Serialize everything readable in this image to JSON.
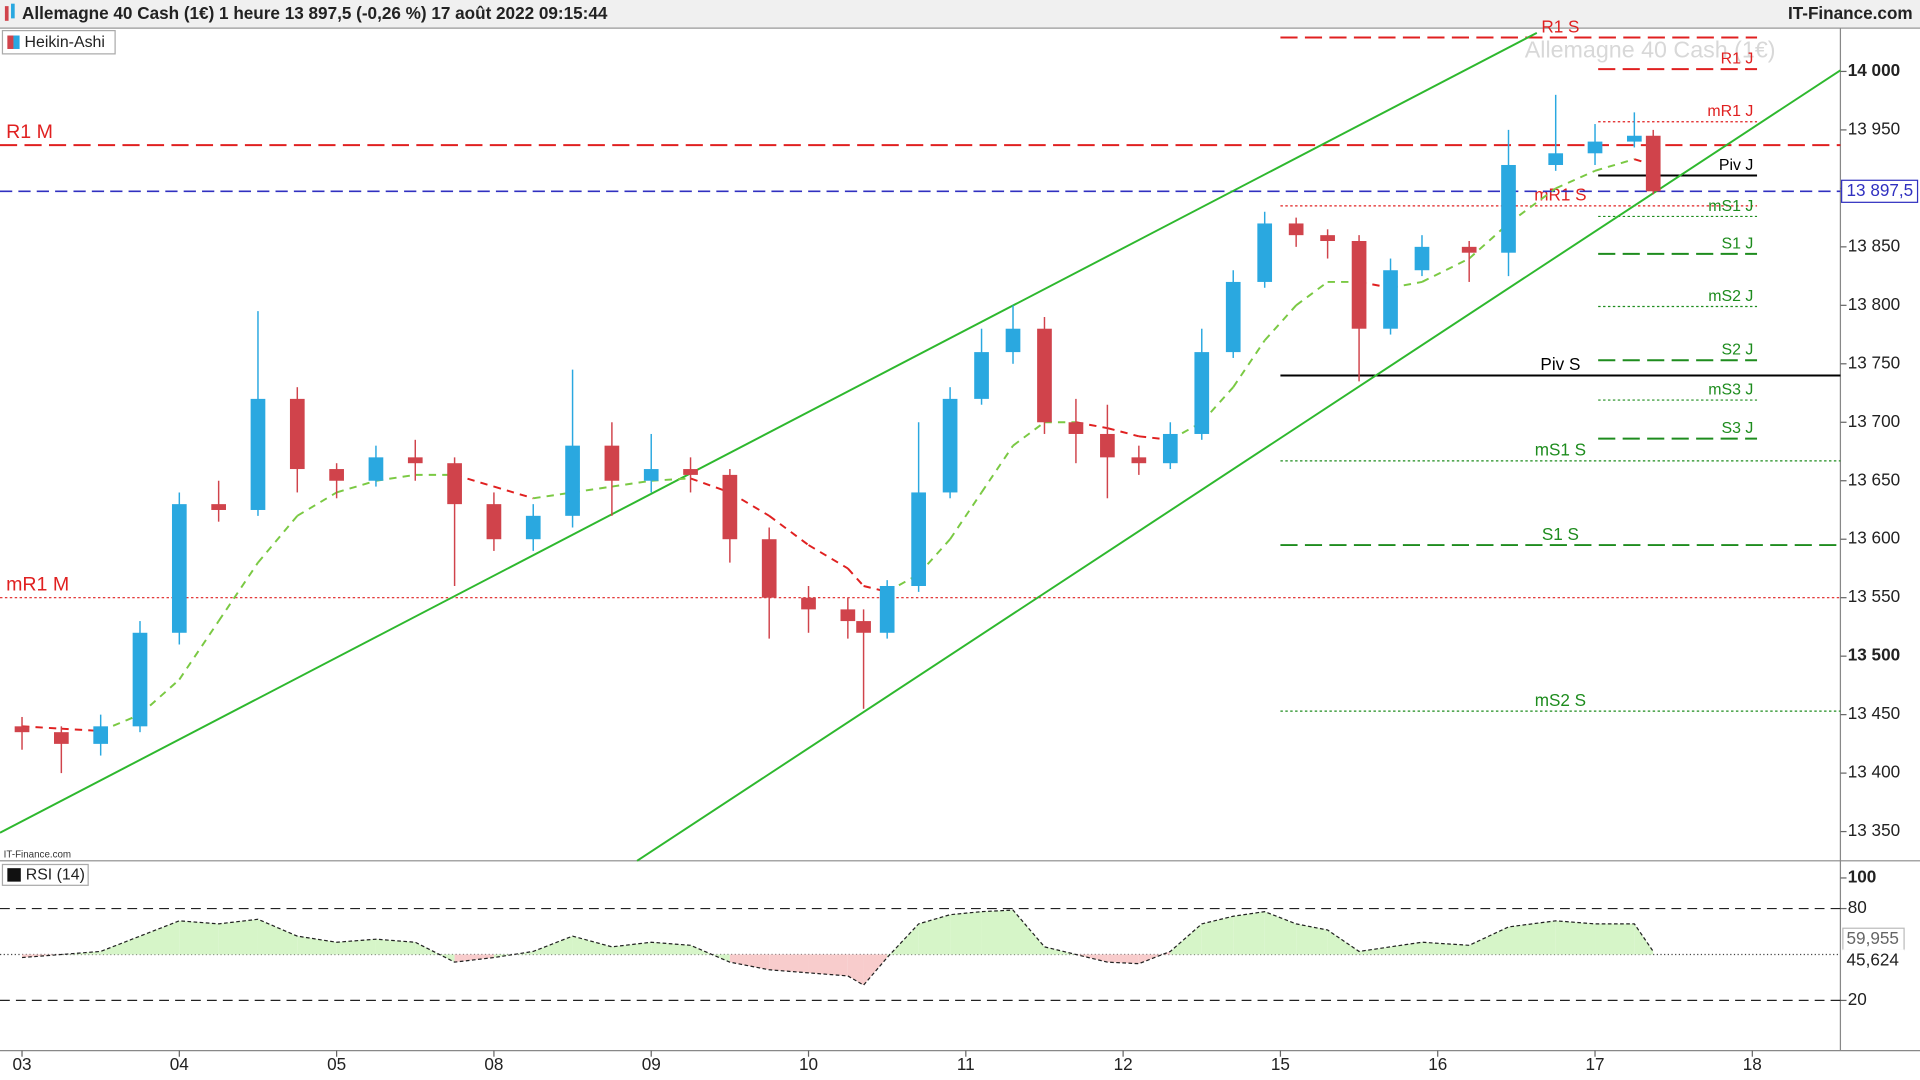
{
  "chart_data": {
    "type": "candlestick",
    "title": "Allemagne 40 Cash (1€) 1 heure 13 897,5 (-0,26 %) 17 août 2022 09:15:44",
    "source": "IT-Finance.com",
    "source_small": "IT-Finance.com",
    "watermark": "Allemagne 40 Cash (1€)",
    "legend": "Heikin-Ashi",
    "up_color": "#2aa8e0",
    "down_color": "#d0434b",
    "x": [
      0,
      0.25,
      0.5,
      0.75,
      1,
      1.25,
      1.5,
      1.75,
      2,
      2.25,
      2.5,
      2.75,
      3,
      3.25,
      3.5,
      3.75,
      4,
      4.25,
      4.5,
      4.75,
      5,
      5.25,
      5.35,
      5.5,
      5.7,
      5.9,
      6.1,
      6.3,
      6.5,
      6.7,
      6.9,
      7.1,
      7.3,
      7.5,
      7.7,
      7.9,
      8.1,
      8.3,
      8.5,
      8.7,
      8.9,
      9.2,
      9.45,
      9.75,
      10,
      10.25,
      10.37
    ],
    "open": [
      13440,
      13435,
      13425,
      13440,
      13520,
      13630,
      13625,
      13720,
      13660,
      13650,
      13670,
      13665,
      13630,
      13600,
      13620,
      13680,
      13650,
      13660,
      13655,
      13600,
      13550,
      13540,
      13530,
      13520,
      13560,
      13640,
      13720,
      13760,
      13780,
      13700,
      13690,
      13670,
      13665,
      13690,
      13760,
      13820,
      13870,
      13860,
      13855,
      13780,
      13830,
      13850,
      13845,
      13920,
      13930,
      13940,
      13945
    ],
    "high": [
      13448,
      13440,
      13450,
      13530,
      13640,
      13650,
      13795,
      13730,
      13665,
      13680,
      13685,
      13670,
      13640,
      13630,
      13745,
      13700,
      13690,
      13670,
      13660,
      13610,
      13560,
      13550,
      13540,
      13565,
      13700,
      13730,
      13780,
      13800,
      13790,
      13720,
      13715,
      13680,
      13700,
      13780,
      13830,
      13880,
      13875,
      13865,
      13860,
      13840,
      13860,
      13855,
      13950,
      13980,
      13955,
      13965,
      13950
    ],
    "low": [
      13420,
      13400,
      13415,
      13435,
      13510,
      13615,
      13620,
      13640,
      13635,
      13645,
      13650,
      13560,
      13590,
      13590,
      13610,
      13620,
      13640,
      13640,
      13580,
      13515,
      13520,
      13515,
      13455,
      13515,
      13555,
      13635,
      13715,
      13750,
      13690,
      13665,
      13635,
      13655,
      13660,
      13685,
      13755,
      13815,
      13850,
      13840,
      13735,
      13775,
      13825,
      13820,
      13825,
      13915,
      13920,
      13935,
      13895
    ],
    "close": [
      13435,
      13425,
      13440,
      13520,
      13630,
      13625,
      13720,
      13660,
      13650,
      13670,
      13665,
      13630,
      13600,
      13620,
      13680,
      13650,
      13660,
      13655,
      13600,
      13550,
      13540,
      13530,
      13520,
      13560,
      13640,
      13720,
      13760,
      13780,
      13700,
      13690,
      13670,
      13665,
      13690,
      13760,
      13820,
      13870,
      13860,
      13855,
      13780,
      13830,
      13850,
      13845,
      13920,
      13930,
      13940,
      13945,
      13897.5
    ],
    "ma": [
      13440,
      13438,
      13436,
      13450,
      13480,
      13530,
      13580,
      13620,
      13640,
      13650,
      13655,
      13655,
      13645,
      13635,
      13640,
      13645,
      13650,
      13652,
      13640,
      13620,
      13595,
      13575,
      13560,
      13555,
      13570,
      13600,
      13640,
      13680,
      13700,
      13700,
      13695,
      13688,
      13685,
      13700,
      13730,
      13770,
      13800,
      13820,
      13820,
      13815,
      13820,
      13840,
      13870,
      13900,
      13915,
      13925,
      13920
    ],
    "ma_up_color": "#7ac943",
    "ma_down_color": "#e02020",
    "xlim": [
      -0.14,
      11.56
    ],
    "xticks": [
      {
        "value": 0,
        "label": "03"
      },
      {
        "value": 1,
        "label": "04"
      },
      {
        "value": 2,
        "label": "05"
      },
      {
        "value": 3,
        "label": "08"
      },
      {
        "value": 4,
        "label": "09"
      },
      {
        "value": 5,
        "label": "10"
      },
      {
        "value": 6,
        "label": "11"
      },
      {
        "value": 7,
        "label": "12"
      },
      {
        "value": 8,
        "label": "15"
      },
      {
        "value": 9,
        "label": "16"
      },
      {
        "value": 10,
        "label": "17"
      },
      {
        "value": 11,
        "label": "18"
      }
    ],
    "ylim": [
      13325,
      14037
    ],
    "yticks": [
      {
        "value": 13350,
        "label": "13 350"
      },
      {
        "value": 13400,
        "label": "13 400"
      },
      {
        "value": 13450,
        "label": "13 450"
      },
      {
        "value": 13500,
        "label": "13 500"
      },
      {
        "value": 13550,
        "label": "13 550"
      },
      {
        "value": 13600,
        "label": "13 600"
      },
      {
        "value": 13650,
        "label": "13 650"
      },
      {
        "value": 13700,
        "label": "13 700"
      },
      {
        "value": 13750,
        "label": "13 750"
      },
      {
        "value": 13800,
        "label": "13 800"
      },
      {
        "value": 13850,
        "label": "13 850"
      },
      {
        "value": 13900,
        "label": "13 900"
      },
      {
        "value": 13950,
        "label": "13 950"
      },
      {
        "value": 14000,
        "label": "14 000"
      }
    ],
    "last_price": {
      "value": 13897.5,
      "label": "13 897,5",
      "color": "#3030c0"
    },
    "trendlines": [
      {
        "x": [
          -0.14,
          9.63
        ],
        "y": [
          13349,
          14033
        ],
        "color": "#2eb82e"
      },
      {
        "x": [
          3.91,
          11.56
        ],
        "y": [
          13325,
          14001
        ],
        "color": "#2eb82e"
      }
    ],
    "levels": [
      {
        "label": "R1 M",
        "value": 13937,
        "color": "#e02020",
        "style": "dashed",
        "x": [
          -0.14,
          11.56
        ]
      },
      {
        "label": "mR1 M",
        "value": 13550,
        "color": "#e02020",
        "style": "dotted",
        "x": [
          -0.14,
          11.56
        ]
      },
      {
        "label": "R1 S",
        "value": 14029,
        "color": "#e02020",
        "style": "dashed",
        "x": [
          8,
          11.03
        ]
      },
      {
        "label": "mR1 S",
        "value": 13885,
        "color": "#e02020",
        "style": "dotted",
        "x": [
          8,
          11.03
        ]
      },
      {
        "label": "Piv S",
        "value": 13740,
        "color": "#000000",
        "style": "solid",
        "x": [
          8,
          11.56
        ]
      },
      {
        "label": "mS1 S",
        "value": 13667,
        "color": "#1e8c1e",
        "style": "dotted",
        "x": [
          8,
          11.56
        ]
      },
      {
        "label": "S1 S",
        "value": 13595,
        "color": "#1e8c1e",
        "style": "dashed",
        "x": [
          8,
          11.56
        ]
      },
      {
        "label": "mS2 S",
        "value": 13453,
        "color": "#1e8c1e",
        "style": "dotted",
        "x": [
          8,
          11.56
        ]
      },
      {
        "label": "R1 J",
        "value": 14002,
        "color": "#e02020",
        "style": "dashed",
        "x": [
          10.02,
          11.03
        ]
      },
      {
        "label": "mR1 J",
        "value": 13957,
        "color": "#e02020",
        "style": "dotted",
        "x": [
          10.02,
          11.03
        ]
      },
      {
        "label": "Piv J",
        "value": 13911,
        "color": "#000000",
        "style": "solid",
        "x": [
          10.02,
          11.03
        ]
      },
      {
        "label": "mS1 J",
        "value": 13876,
        "color": "#1e8c1e",
        "style": "dotted",
        "x": [
          10.02,
          11.03
        ]
      },
      {
        "label": "S1 J",
        "value": 13844,
        "color": "#1e8c1e",
        "style": "dashed",
        "x": [
          10.02,
          11.03
        ]
      },
      {
        "label": "mS2 J",
        "value": 13799,
        "color": "#1e8c1e",
        "style": "dotted",
        "x": [
          10.02,
          11.03
        ]
      },
      {
        "label": "S2 J",
        "value": 13753,
        "color": "#1e8c1e",
        "style": "dashed",
        "x": [
          10.02,
          11.03
        ]
      },
      {
        "label": "mS3 J",
        "value": 13719,
        "color": "#1e8c1e",
        "style": "dotted",
        "x": [
          10.02,
          11.03
        ]
      },
      {
        "label": "S3 J",
        "value": 13686,
        "color": "#1e8c1e",
        "style": "dashed",
        "x": [
          10.02,
          11.03
        ]
      }
    ],
    "rsi": {
      "title": "RSI (14)",
      "values": [
        48,
        50,
        52,
        62,
        72,
        70,
        73,
        62,
        58,
        60,
        58,
        45,
        48,
        52,
        62,
        55,
        58,
        56,
        45,
        40,
        38,
        36,
        30,
        48,
        70,
        76,
        78,
        79,
        55,
        50,
        45,
        44,
        52,
        70,
        75,
        78,
        70,
        66,
        52,
        55,
        58,
        56,
        68,
        72,
        70,
        70,
        52
      ],
      "ylim": [
        0,
        100
      ],
      "yticks": [
        20,
        80,
        100
      ],
      "bands": [
        20,
        80
      ],
      "midline": 50,
      "up_fill": "#d6f5c8",
      "down_fill": "#f8cccc",
      "labels": [
        {
          "value": 59.955,
          "label": "59,955"
        },
        {
          "value": 45.624,
          "label": "45,624"
        }
      ]
    }
  }
}
